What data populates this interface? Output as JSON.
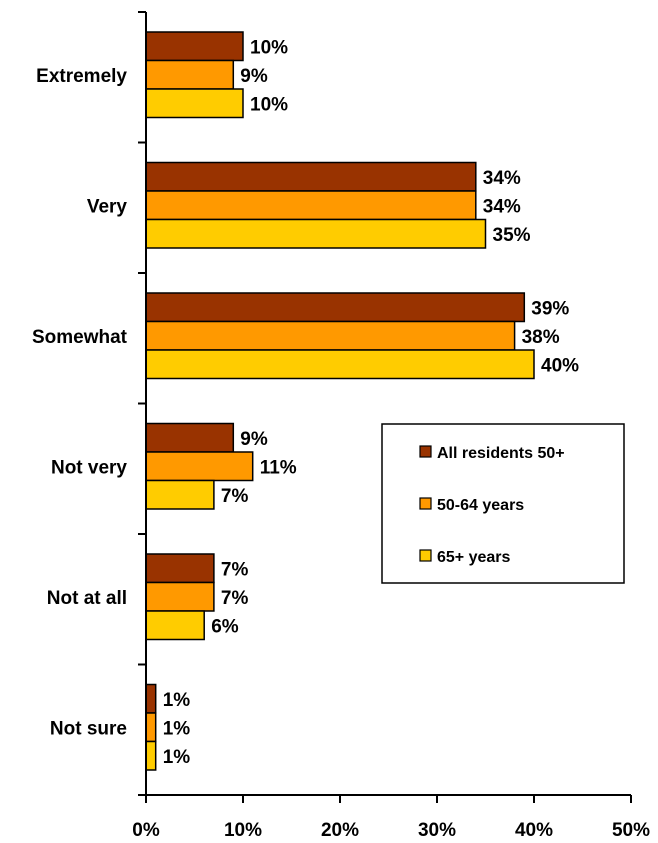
{
  "chart_data": {
    "type": "bar",
    "orientation": "horizontal",
    "categories": [
      "Extremely",
      "Very",
      "Somewhat",
      "Not very",
      "Not at all",
      "Not sure"
    ],
    "series": [
      {
        "name": "All residents 50+",
        "color": "#993300",
        "values": [
          10,
          34,
          39,
          9,
          7,
          1
        ]
      },
      {
        "name": "50-64 years",
        "color": "#FF9900",
        "values": [
          9,
          34,
          38,
          11,
          7,
          1
        ]
      },
      {
        "name": "65+ years",
        "color": "#FFCC00",
        "values": [
          10,
          35,
          40,
          7,
          6,
          1
        ]
      }
    ],
    "value_format": "percent",
    "xlim": [
      0,
      50
    ],
    "xticks": [
      0,
      10,
      20,
      30,
      40,
      50
    ],
    "tick_labels": [
      "0%",
      "10%",
      "20%",
      "30%",
      "40%",
      "50%"
    ],
    "title": "",
    "xlabel": "",
    "ylabel": "",
    "grid": false,
    "legend_position": "right-center"
  }
}
